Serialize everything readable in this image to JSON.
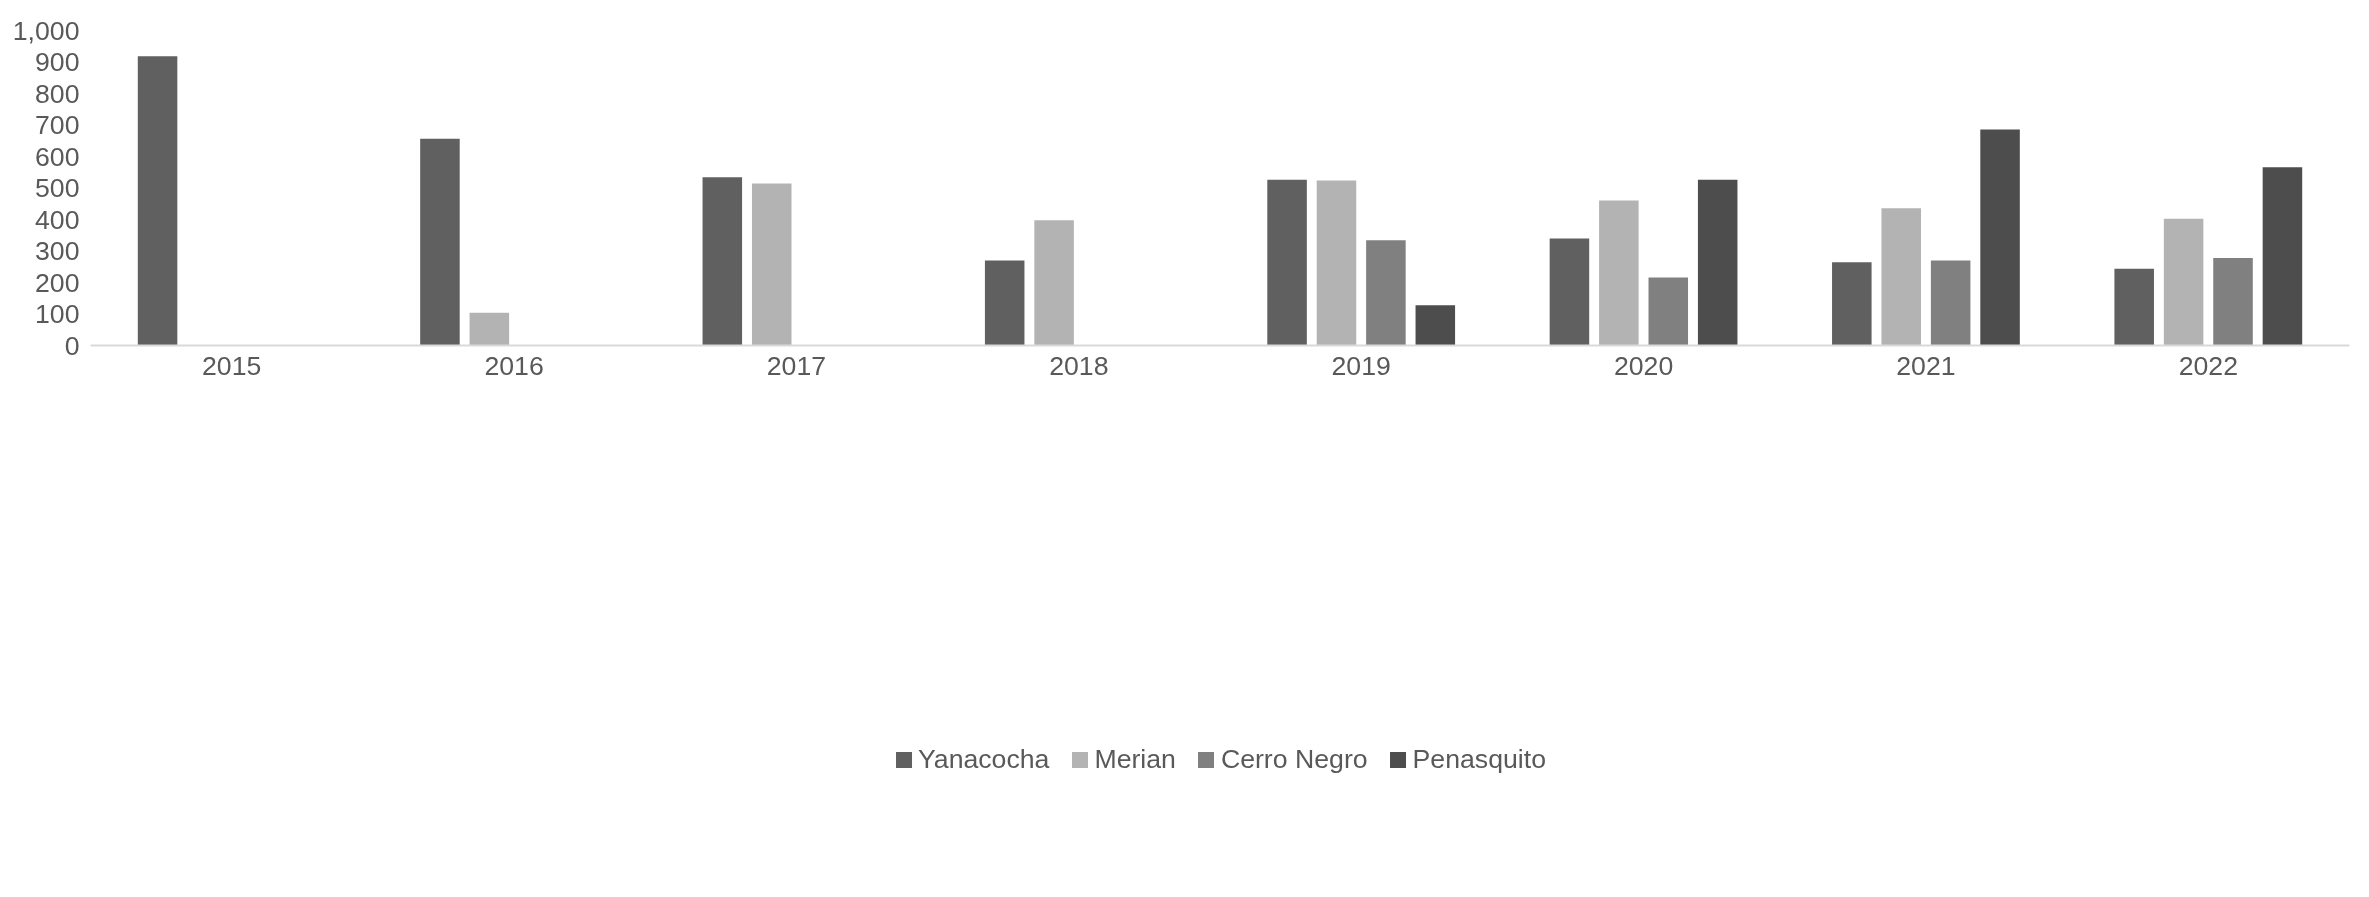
{
  "chart_data": {
    "type": "bar",
    "categories": [
      "2015",
      "2016",
      "2017",
      "2018",
      "2019",
      "2020",
      "2021",
      "2022"
    ],
    "series": [
      {
        "name": "Yanacocha",
        "color": "#606060",
        "values": [
          918,
          656,
          534,
          270,
          526,
          340,
          264,
          244
        ]
      },
      {
        "name": "Merian",
        "color": "#b3b3b3",
        "values": [
          null,
          104,
          514,
          398,
          524,
          460,
          436,
          402
        ]
      },
      {
        "name": "Cerro Negro",
        "color": "#808080",
        "values": [
          null,
          null,
          null,
          null,
          334,
          216,
          270,
          278
        ]
      },
      {
        "name": "Penasquito",
        "color": "#4d4d4d",
        "values": [
          null,
          null,
          null,
          null,
          128,
          526,
          686,
          566
        ]
      }
    ],
    "ylim": [
      0,
      1000
    ],
    "yticks": [
      0,
      100,
      200,
      300,
      400,
      500,
      600,
      700,
      800,
      900,
      {
        "value": 1000,
        "label": "1,000"
      }
    ],
    "grid": false,
    "legend": "bottom"
  }
}
